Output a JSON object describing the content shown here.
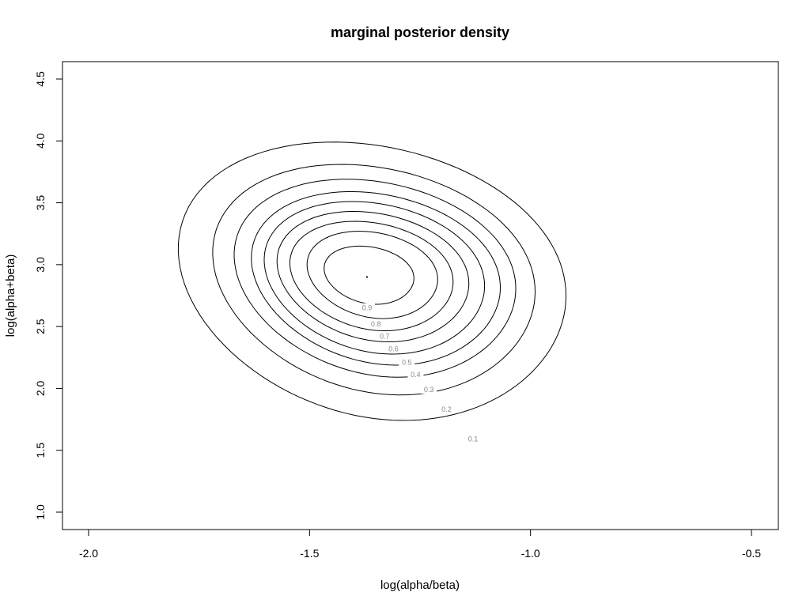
{
  "chart_data": {
    "type": "contour",
    "title": "marginal posterior density",
    "xlabel": "log(alpha/beta)",
    "ylabel": "log(alpha+beta)",
    "xlim": [
      -2.0,
      -0.5
    ],
    "ylim": [
      1.0,
      4.5
    ],
    "x_ticks": [
      -2.0,
      -1.5,
      -1.0,
      -0.5
    ],
    "x_tick_labels": [
      "-2.0",
      "-1.5",
      "-1.0",
      "-0.5"
    ],
    "y_ticks": [
      1.0,
      1.5,
      2.0,
      2.5,
      3.0,
      3.5,
      4.0,
      4.5
    ],
    "y_tick_labels": [
      "1.0",
      "1.5",
      "2.0",
      "2.5",
      "3.0",
      "3.5",
      "4.0",
      "4.5"
    ],
    "mode": {
      "x": -1.37,
      "y": 2.9
    },
    "levels": [
      {
        "level": 0.1,
        "label": "0.1",
        "x_range": [
          -1.81,
          -0.86
        ],
        "y_range": [
          1.6,
          3.99
        ],
        "label_at": {
          "x": -1.13,
          "y": 1.59
        }
      },
      {
        "level": 0.2,
        "label": "0.2",
        "x_range": [
          -1.73,
          -0.94
        ],
        "y_range": [
          1.83,
          3.81
        ],
        "label_at": {
          "x": -1.19,
          "y": 1.83
        }
      },
      {
        "level": 0.3,
        "label": "0.3",
        "x_range": [
          -1.68,
          -0.99
        ],
        "y_range": [
          1.99,
          3.69
        ],
        "label_at": {
          "x": -1.23,
          "y": 1.99
        }
      },
      {
        "level": 0.4,
        "label": "0.4",
        "x_range": [
          -1.64,
          -1.03
        ],
        "y_range": [
          2.1,
          3.59
        ],
        "label_at": {
          "x": -1.26,
          "y": 2.11
        }
      },
      {
        "level": 0.5,
        "label": "0.5",
        "x_range": [
          -1.61,
          -1.07
        ],
        "y_range": [
          2.2,
          3.51
        ],
        "label_at": {
          "x": -1.28,
          "y": 2.21
        }
      },
      {
        "level": 0.6,
        "label": "0.6",
        "x_range": [
          -1.58,
          -1.11
        ],
        "y_range": [
          2.31,
          3.43
        ],
        "label_at": {
          "x": -1.31,
          "y": 2.32
        }
      },
      {
        "level": 0.7,
        "label": "0.7",
        "x_range": [
          -1.55,
          -1.15
        ],
        "y_range": [
          2.41,
          3.35
        ],
        "label_at": {
          "x": -1.33,
          "y": 2.42
        }
      },
      {
        "level": 0.8,
        "label": "0.8",
        "x_range": [
          -1.51,
          -1.19
        ],
        "y_range": [
          2.52,
          3.27
        ],
        "label_at": {
          "x": -1.35,
          "y": 2.52
        }
      },
      {
        "level": 0.9,
        "label": "0.9",
        "x_range": [
          -1.47,
          -1.25
        ],
        "y_range": [
          2.65,
          3.15
        ],
        "label_at": {
          "x": -1.37,
          "y": 2.65
        }
      }
    ],
    "grid": false,
    "legend": "none"
  }
}
